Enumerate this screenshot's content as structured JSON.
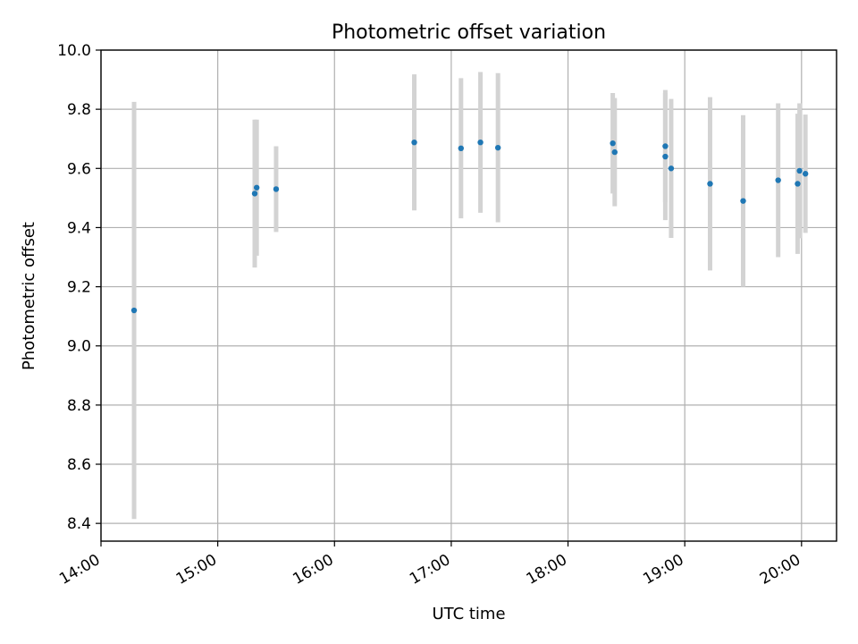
{
  "chart_data": {
    "type": "scatter",
    "title": "Photometric offset variation",
    "xlabel": "UTC time",
    "ylabel": "Photometric offset",
    "xlim": [
      "14:00",
      "20:18"
    ],
    "ylim": [
      8.34,
      10.0
    ],
    "xticks": [
      "14:00",
      "15:00",
      "16:00",
      "17:00",
      "18:00",
      "19:00",
      "20:00"
    ],
    "yticks": [
      "8.4",
      "8.6",
      "8.8",
      "9.0",
      "9.2",
      "9.4",
      "9.6",
      "9.8",
      "10.0"
    ],
    "grid": true,
    "colors": {
      "points": "#1f77b4",
      "errorbars": "#d3d3d3",
      "grid": "#b0b0b0"
    },
    "series": [
      {
        "points": [
          {
            "x": "14:17",
            "y": 9.12,
            "err": 0.705
          },
          {
            "x": "15:19",
            "y": 9.515,
            "err": 0.25
          },
          {
            "x": "15:20",
            "y": 9.535,
            "err": 0.23
          },
          {
            "x": "15:30",
            "y": 9.53,
            "err": 0.145
          },
          {
            "x": "16:41",
            "y": 9.688,
            "err": 0.23
          },
          {
            "x": "17:05",
            "y": 9.668,
            "err": 0.237
          },
          {
            "x": "17:15",
            "y": 9.688,
            "err": 0.238
          },
          {
            "x": "17:24",
            "y": 9.67,
            "err": 0.252
          },
          {
            "x": "18:23",
            "y": 9.685,
            "err": 0.17
          },
          {
            "x": "18:24",
            "y": 9.655,
            "err": 0.183
          },
          {
            "x": "18:50",
            "y": 9.675,
            "err": 0.19
          },
          {
            "x": "18:50",
            "y": 9.64,
            "err": 0.215
          },
          {
            "x": "18:53",
            "y": 9.6,
            "err": 0.235
          },
          {
            "x": "19:13",
            "y": 9.548,
            "err": 0.293
          },
          {
            "x": "19:30",
            "y": 9.49,
            "err": 0.29
          },
          {
            "x": "19:48",
            "y": 9.56,
            "err": 0.26
          },
          {
            "x": "19:58",
            "y": 9.548,
            "err": 0.237
          },
          {
            "x": "19:59",
            "y": 9.592,
            "err": 0.228
          },
          {
            "x": "20:02",
            "y": 9.582,
            "err": 0.2
          }
        ]
      }
    ]
  }
}
